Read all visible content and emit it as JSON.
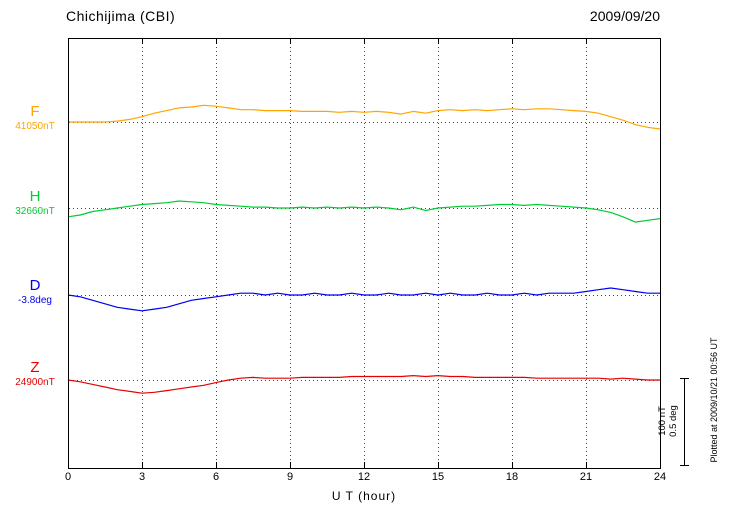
{
  "header": {
    "title": "Chichijima (CBI)",
    "date": "2009/09/20"
  },
  "xlabel": "U T (hour)",
  "x_tick_labels": [
    "0",
    "3",
    "6",
    "9",
    "12",
    "15",
    "18",
    "21",
    "24"
  ],
  "scale_label": {
    "line1": "100 nT",
    "line2": "0.5 deg"
  },
  "plot_note": "Plotted at 2009/10/21 00:56 UT",
  "chart_data": {
    "type": "line",
    "title": "Chichijima (CBI)",
    "date": "2009/09/20",
    "xlabel": "U T (hour)",
    "x_range": [
      0,
      24
    ],
    "x_ticks": [
      0,
      3,
      6,
      9,
      12,
      15,
      18,
      21,
      24
    ],
    "grid_hours": [
      3,
      6,
      9,
      12,
      15,
      18,
      21
    ],
    "grid": "dotted-vertical-and-baselines",
    "scale_bar": {
      "nT": 100,
      "deg": 0.5
    },
    "series": [
      {
        "name": "F",
        "unit": "nT",
        "baseline": 41050,
        "baseline_label": "41050nT",
        "color": "#FFA500",
        "x_start": 0,
        "x_step": 0.5,
        "values": [
          0,
          0,
          0,
          0,
          1,
          3,
          6,
          10,
          13,
          16,
          17,
          19,
          18,
          16,
          14,
          14,
          13,
          13,
          13,
          12,
          12,
          12,
          11,
          12,
          11,
          12,
          11,
          9,
          12,
          10,
          13,
          14,
          13,
          14,
          13,
          14,
          15,
          14,
          15,
          15,
          14,
          13,
          12,
          10,
          6,
          2,
          -3,
          -6,
          -8
        ]
      },
      {
        "name": "H",
        "unit": "nT",
        "baseline": 32660,
        "baseline_label": "32660nT",
        "color": "#00CC33",
        "x_start": 0,
        "x_step": 0.5,
        "values": [
          -10,
          -8,
          -4,
          -2,
          0,
          2,
          4,
          5,
          6,
          8,
          7,
          6,
          4,
          3,
          2,
          1,
          1,
          0,
          0,
          1,
          0,
          1,
          0,
          1,
          0,
          1,
          0,
          -2,
          1,
          -3,
          0,
          1,
          2,
          2,
          3,
          4,
          4,
          3,
          4,
          3,
          2,
          1,
          0,
          -2,
          -5,
          -10,
          -16,
          -14,
          -12
        ]
      },
      {
        "name": "D",
        "unit": "deg",
        "baseline": -3.8,
        "baseline_label": "-3.8deg",
        "color": "#0000EE",
        "x_start": 0,
        "x_step": 0.5,
        "values": [
          0,
          -0.01,
          -0.03,
          -0.05,
          -0.07,
          -0.08,
          -0.09,
          -0.08,
          -0.07,
          -0.05,
          -0.03,
          -0.02,
          -0.01,
          0,
          0.01,
          0.01,
          0,
          0.01,
          0,
          0,
          0.01,
          0,
          0,
          0.01,
          0,
          0,
          0.01,
          0,
          0,
          0.01,
          0,
          0.01,
          0,
          0,
          0.01,
          0,
          0,
          0.01,
          0,
          0.01,
          0.01,
          0.01,
          0.02,
          0.03,
          0.04,
          0.03,
          0.02,
          0.01,
          0.01
        ]
      },
      {
        "name": "Z",
        "unit": "nT",
        "baseline": 24900,
        "baseline_label": "24900nT",
        "color": "#E80000",
        "x_start": 0,
        "x_step": 0.5,
        "values": [
          0,
          -2,
          -5,
          -8,
          -11,
          -13,
          -15,
          -14,
          -12,
          -10,
          -8,
          -6,
          -3,
          0,
          2,
          3,
          2,
          2,
          2,
          3,
          3,
          3,
          3,
          4,
          4,
          4,
          4,
          4,
          5,
          4,
          5,
          4,
          4,
          3,
          3,
          3,
          3,
          3,
          2,
          2,
          2,
          2,
          2,
          2,
          1,
          2,
          1,
          0,
          0
        ]
      }
    ]
  }
}
